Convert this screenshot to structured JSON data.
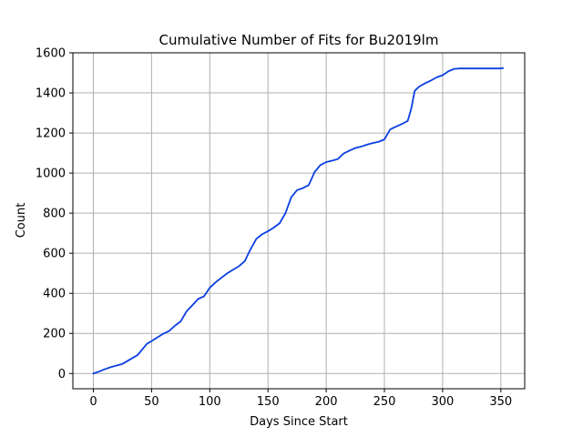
{
  "chart_data": {
    "type": "line",
    "title": "Cumulative Number of Fits for Bu2019lm",
    "xlabel": "Days Since Start",
    "ylabel": "Count",
    "xlim": [
      -17.6,
      370.5
    ],
    "ylim": [
      -76,
      1600
    ],
    "xticks": [
      0,
      50,
      100,
      150,
      200,
      250,
      300,
      350
    ],
    "yticks": [
      0,
      200,
      400,
      600,
      800,
      1000,
      1200,
      1400,
      1600
    ],
    "grid": true,
    "colors": {
      "line": "#0b3fe0",
      "grid": "#b0b0b0",
      "axes": "#000000"
    },
    "series": [
      {
        "x": [
          0,
          5,
          10,
          15,
          20,
          25,
          30,
          35,
          38,
          42,
          46,
          50,
          55,
          60,
          65,
          70,
          75,
          80,
          85,
          90,
          95,
          100,
          105,
          110,
          115,
          120,
          125,
          130,
          135,
          140,
          145,
          150,
          155,
          160,
          165,
          170,
          175,
          180,
          185,
          190,
          195,
          200,
          205,
          210,
          215,
          220,
          225,
          230,
          235,
          240,
          245,
          250,
          255,
          260,
          265,
          270,
          273,
          276,
          280,
          285,
          290,
          295,
          300,
          305,
          310,
          315,
          320,
          330,
          340,
          350,
          352
        ],
        "y": [
          0,
          10,
          22,
          32,
          40,
          48,
          65,
          82,
          92,
          120,
          148,
          162,
          180,
          198,
          212,
          238,
          260,
          310,
          340,
          372,
          385,
          428,
          455,
          478,
          500,
          518,
          535,
          560,
          620,
          672,
          695,
          710,
          728,
          750,
          800,
          880,
          915,
          925,
          940,
          1005,
          1040,
          1055,
          1062,
          1070,
          1098,
          1112,
          1125,
          1132,
          1142,
          1150,
          1156,
          1168,
          1218,
          1232,
          1245,
          1260,
          1320,
          1410,
          1432,
          1448,
          1462,
          1478,
          1488,
          1508,
          1520,
          1522,
          1522,
          1522,
          1522,
          1522,
          1524
        ]
      }
    ]
  }
}
